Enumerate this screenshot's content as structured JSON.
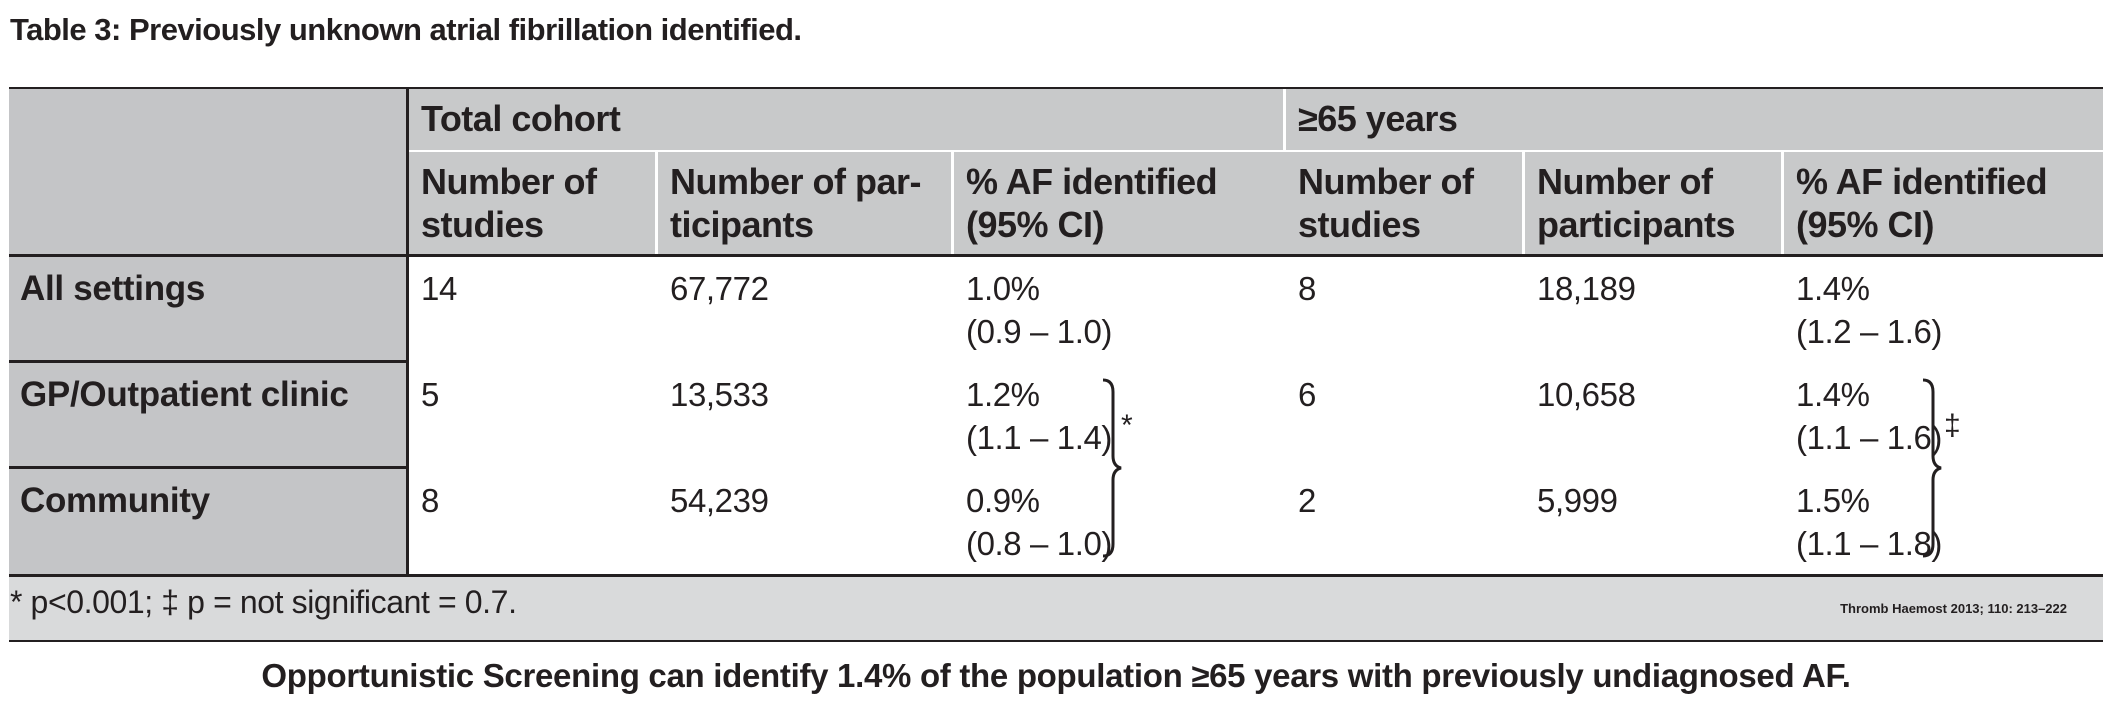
{
  "title": "Table 3: Previously unknown atrial fibrillation identified.",
  "groups": [
    "Total cohort",
    "≥65 years"
  ],
  "columns": {
    "total_studies": [
      "Number of",
      "studies"
    ],
    "total_participants": [
      "Number of par-",
      "ticipants"
    ],
    "total_af": [
      "% AF identified",
      "(95% CI)"
    ],
    "older_studies": [
      "Number of",
      "studies"
    ],
    "older_participants": [
      "Number of",
      "participants"
    ],
    "older_af": [
      "% AF identified",
      "(95% CI)"
    ]
  },
  "rows": [
    {
      "label": "All settings",
      "total_studies": "14",
      "total_participants": "67,772",
      "total_af": "1.0%",
      "total_ci": "(0.9 – 1.0)",
      "older_studies": "8",
      "older_participants": "18,189",
      "older_af": "1.4%",
      "older_ci": "(1.2 – 1.6)"
    },
    {
      "label": "GP/Outpatient clinic",
      "total_studies": "5",
      "total_participants": "13,533",
      "total_af": "1.2%",
      "total_ci": "(1.1 – 1.4)",
      "older_studies": "6",
      "older_participants": "10,658",
      "older_af": "1.4%",
      "older_ci": "(1.1 – 1.6)"
    },
    {
      "label": "Community",
      "total_studies": "8",
      "total_participants": "54,239",
      "total_af": "0.9%",
      "total_ci": "(0.8 – 1.0)",
      "older_studies": "2",
      "older_participants": "5,999",
      "older_af": "1.5%",
      "older_ci": "(1.1 – 1.8)"
    }
  ],
  "significance_marks": {
    "total": "*",
    "older": "‡"
  },
  "footnote": "* p<0.001; ‡ p = not significant = 0.7.",
  "citation": "Thromb Haemost 2013; 110: 213–222",
  "caption": "Opportunistic Screening can identify 1.4% of the population ≥65 years with previously undiagnosed AF."
}
